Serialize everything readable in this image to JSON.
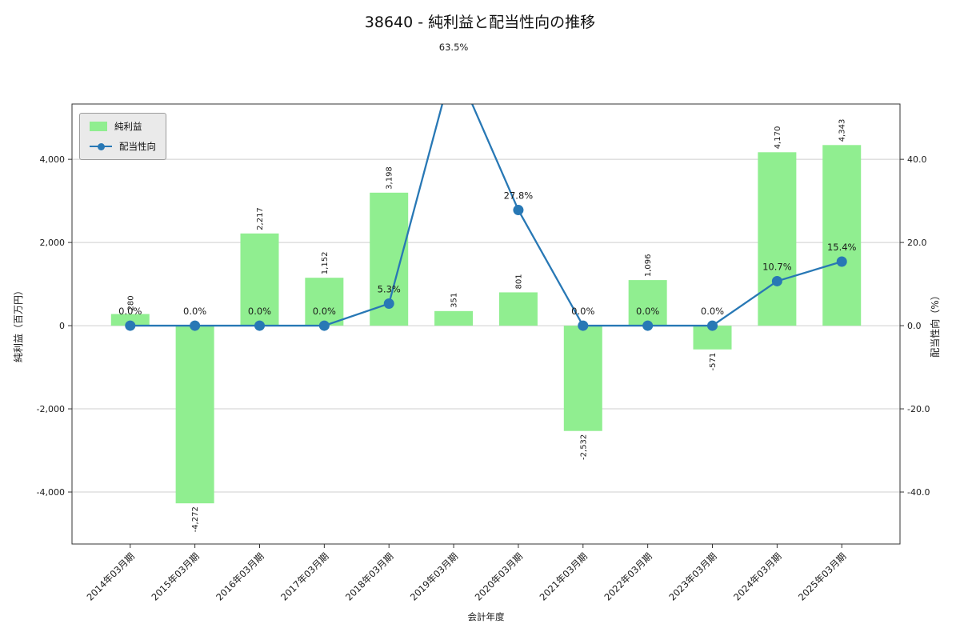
{
  "title": "38640 - 純利益と配当性向の推移",
  "chart_data": {
    "type": "bar",
    "title": "38640 - 純利益と配当性向の推移",
    "xlabel": "会計年度",
    "ylabel_left": "純利益（百万円）",
    "ylabel_right": "配当性向（%）",
    "categories": [
      "2014年03月期",
      "2015年03月期",
      "2016年03月期",
      "2017年03月期",
      "2018年03月期",
      "2019年03月期",
      "2020年03月期",
      "2021年03月期",
      "2022年03月期",
      "2023年03月期",
      "2024年03月期",
      "2025年03月期"
    ],
    "series": [
      {
        "name": "純利益",
        "type": "bar",
        "axis": "left",
        "color": "#90EE90",
        "values": [
          280,
          -4272,
          2217,
          1152,
          3198,
          351,
          801,
          -2532,
          1096,
          -571,
          4170,
          4343
        ],
        "labels": [
          "280",
          "-4,272",
          "2,217",
          "1,152",
          "3,198",
          "351",
          "801",
          "-2,532",
          "1,096",
          "-571",
          "4,170",
          "4,343"
        ]
      },
      {
        "name": "配当性向",
        "type": "line",
        "axis": "right",
        "color": "#2878b5",
        "values": [
          0.0,
          0.0,
          0.0,
          0.0,
          5.3,
          63.5,
          27.8,
          0.0,
          0.0,
          0.0,
          10.7,
          15.4
        ],
        "labels": [
          "0.0%",
          "0.0%",
          "0.0%",
          "0.0%",
          "5.3%",
          "63.5%",
          "27.8%",
          "0.0%",
          "0.0%",
          "0.0%",
          "10.7%",
          "15.4%"
        ]
      }
    ],
    "ylim_left": [
      -5250,
      5330
    ],
    "ylim_right": [
      -52.5,
      53.3
    ],
    "yticks_left": [
      -4000,
      -2000,
      0,
      2000,
      4000
    ],
    "yticks_left_labels": [
      "-4,000",
      "-2,000",
      "0",
      "2,000",
      "4,000"
    ],
    "yticks_right": [
      -40,
      -20,
      0,
      20,
      40
    ],
    "yticks_right_labels": [
      "-40.0",
      "-20.0",
      "0.0",
      "20.0",
      "40.0"
    ],
    "grid": true,
    "legend_position": "top-left",
    "offscale_annotation": "63.5%"
  }
}
